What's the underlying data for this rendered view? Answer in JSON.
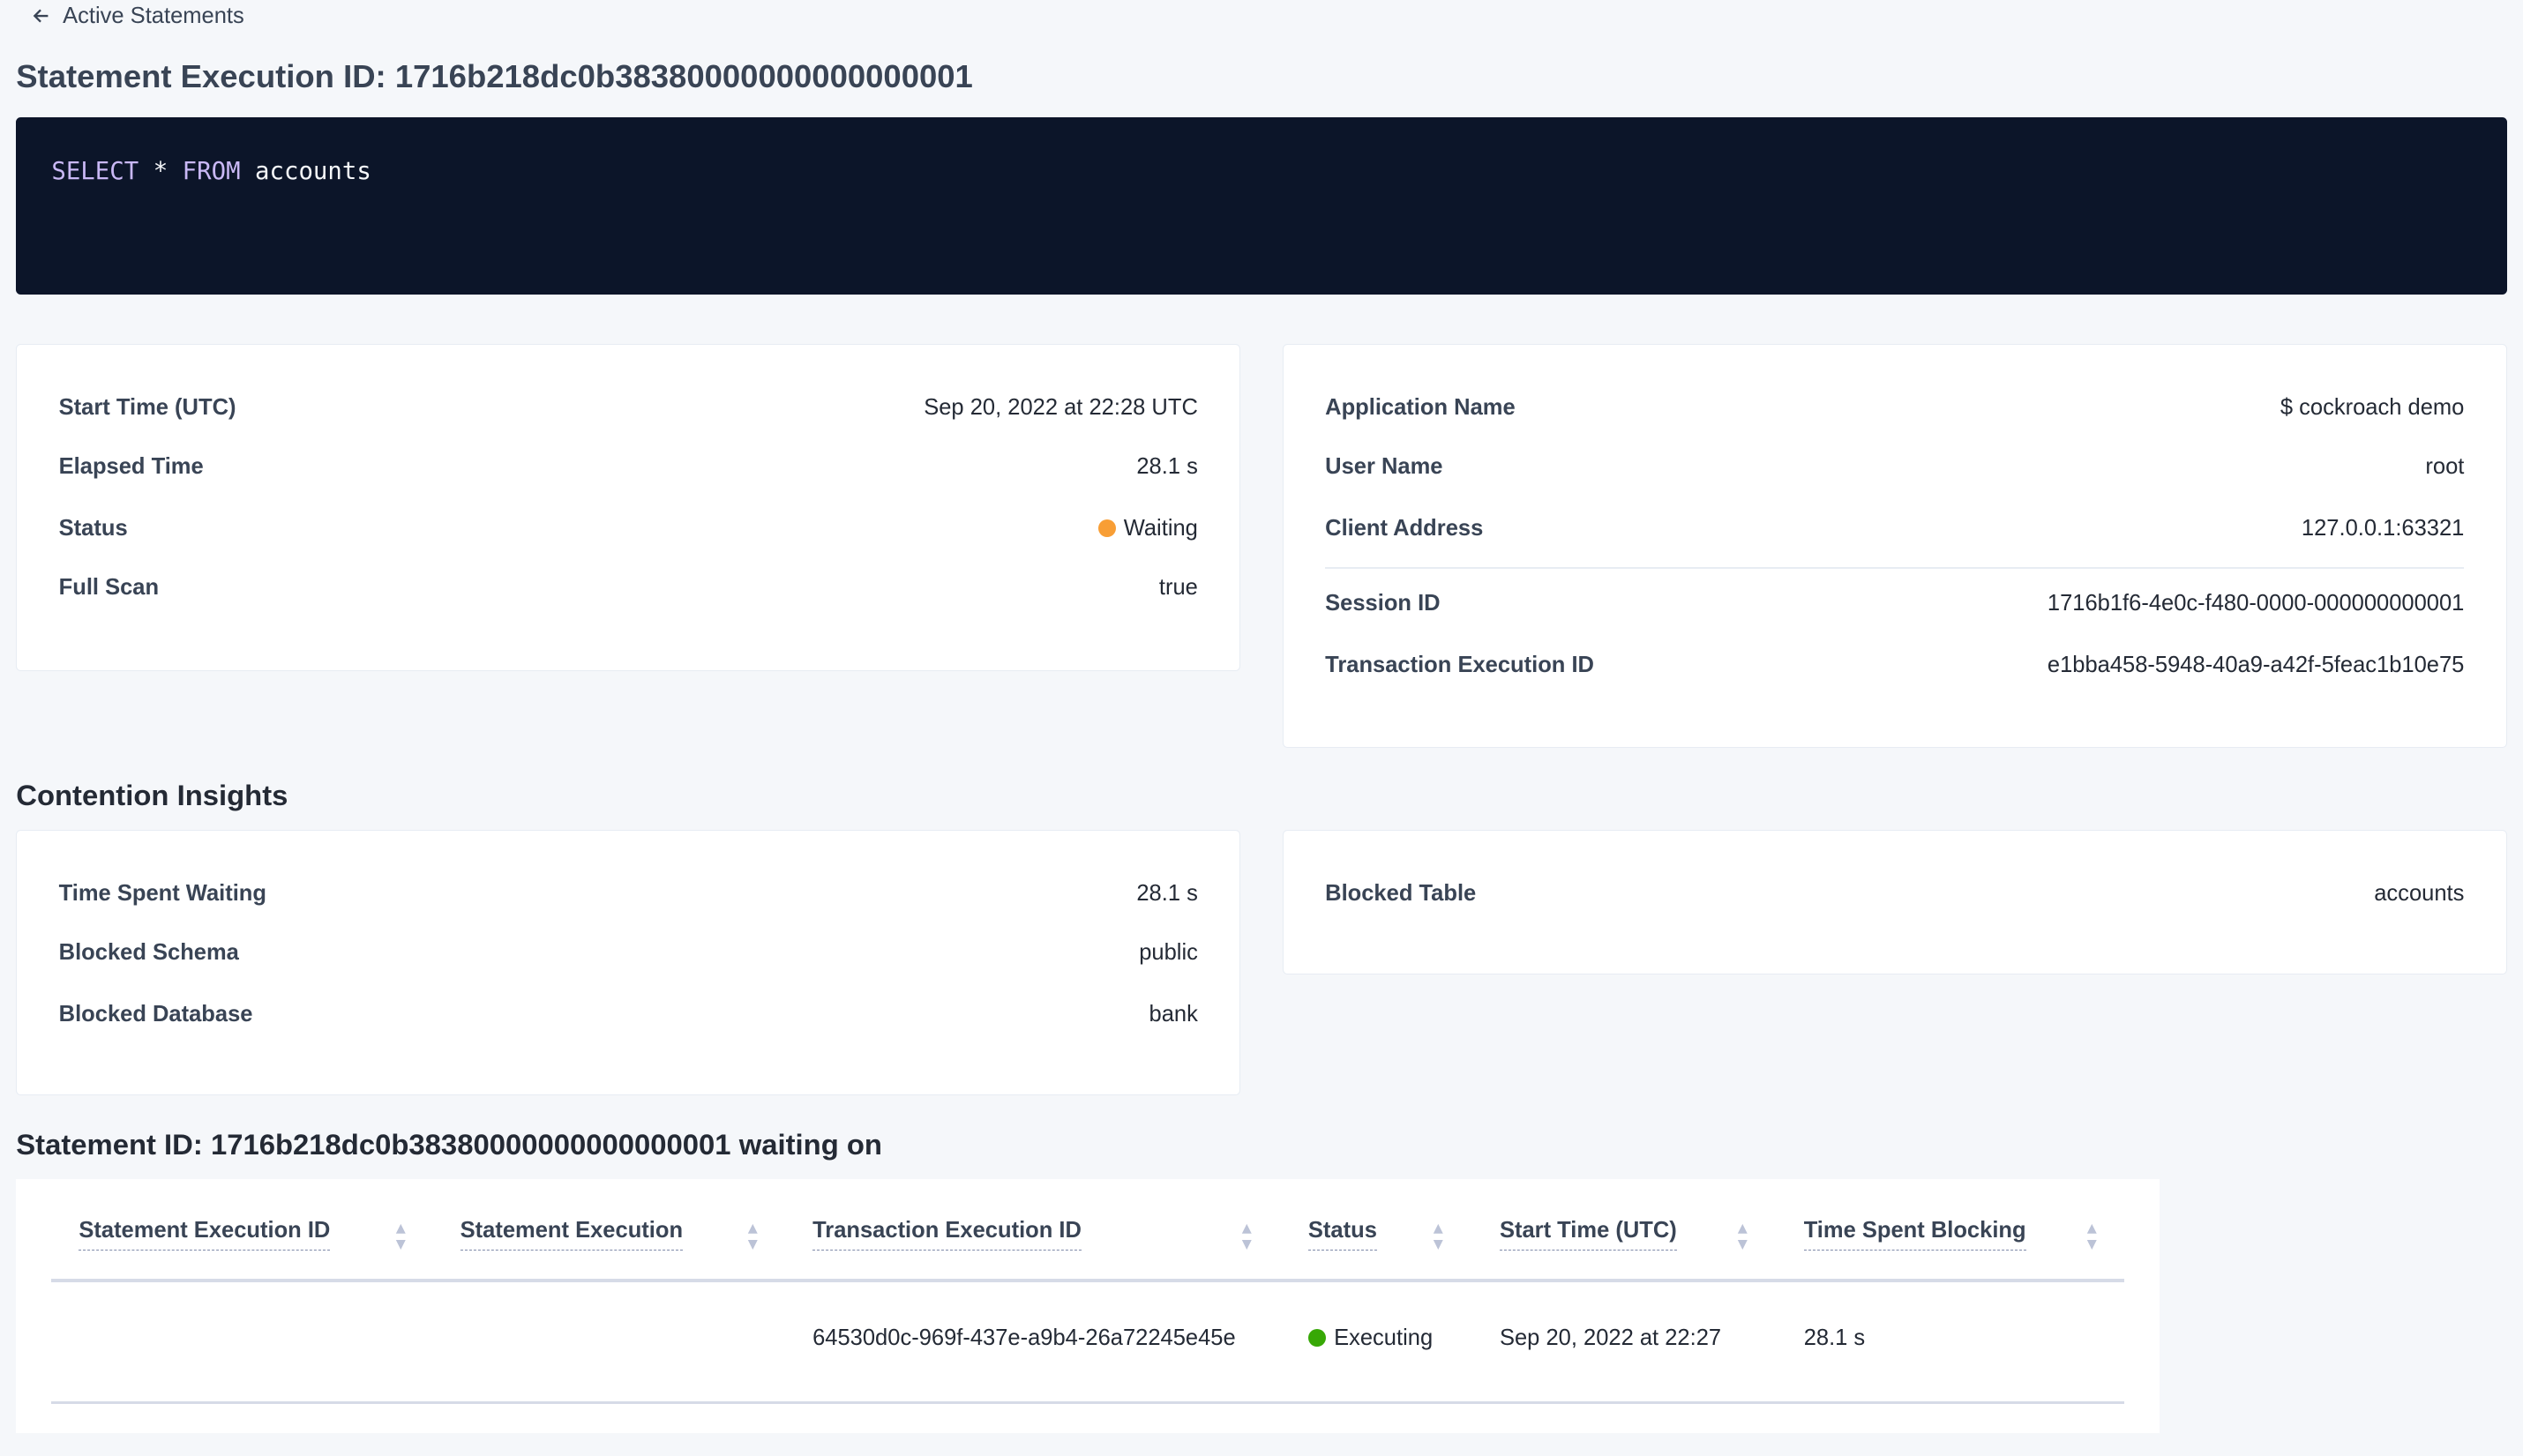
{
  "nav": {
    "back_label": "Active Statements",
    "back_icon": "arrow-left-icon"
  },
  "page_title": "Statement Execution ID: 1716b218dc0b38380000000000000001",
  "sql": {
    "kw1": "SELECT",
    "op": "*",
    "kw2": "FROM",
    "table": "accounts"
  },
  "details_left": [
    {
      "label": "Start Time (UTC)",
      "value": "Sep 20, 2022 at 22:28 UTC"
    },
    {
      "label": "Elapsed Time",
      "value": "28.1 s"
    },
    {
      "label": "Status",
      "value": "Waiting",
      "status_color": "#f89e35"
    },
    {
      "label": "Full Scan",
      "value": "true"
    }
  ],
  "details_right": [
    {
      "label": "Application Name",
      "value": "$ cockroach demo"
    },
    {
      "label": "User Name",
      "value": "root"
    },
    {
      "label": "Client Address",
      "value": "127.0.0.1:63321"
    },
    {
      "label": "Session ID",
      "value": "1716b1f6-4e0c-f480-0000-000000000001"
    },
    {
      "label": "Transaction Execution ID",
      "value": "e1bba458-5948-40a9-a42f-5feac1b10e75"
    }
  ],
  "contention": {
    "title": "Contention Insights",
    "left": [
      {
        "label": "Time Spent Waiting",
        "value": "28.1 s"
      },
      {
        "label": "Blocked Schema",
        "value": "public"
      },
      {
        "label": "Blocked Database",
        "value": "bank"
      }
    ],
    "right": [
      {
        "label": "Blocked Table",
        "value": "accounts"
      }
    ]
  },
  "waiting": {
    "title": "Statement ID: 1716b218dc0b38380000000000000001 waiting on",
    "columns": [
      "Statement Execution ID",
      "Statement Execution",
      "Transaction Execution ID",
      "Status",
      "Start Time (UTC)",
      "Time Spent Blocking"
    ],
    "rows": [
      {
        "stmt_exec_id": "",
        "stmt_exec": "",
        "txn_exec_id": "64530d0c-969f-437e-a9b4-26a72245e45e",
        "status": "Executing",
        "status_color": "#37a806",
        "start_time": "Sep 20, 2022 at 22:27",
        "time_blocking": "28.1 s"
      }
    ]
  },
  "colors": {
    "accent_link": "#0055ff",
    "code_bg": "#0c1529",
    "keyword": "#c9b8f5"
  }
}
